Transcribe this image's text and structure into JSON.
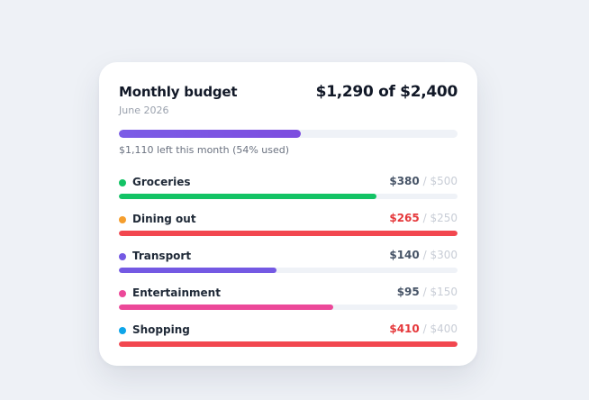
{
  "card": {
    "title": "Monthly budget",
    "period": "June 2026",
    "total": "$1,290 of $2,400",
    "progress_fraction": 0.5375,
    "progress_color": "#7c4ddf",
    "summary": "$1,110 left this month (54% used)"
  },
  "colors": {
    "spent_default": "#475467",
    "spent_over": "#e5383b"
  },
  "categories": [
    {
      "name": "Groceries",
      "spent": "$380",
      "limit": "$500",
      "fraction": 0.76,
      "color": "#13c365",
      "dot_color": "#13c365",
      "over": false
    },
    {
      "name": "Dining out",
      "spent": "$265",
      "limit": "$250",
      "fraction": 1.0,
      "color": "#f2474f",
      "dot_color": "#f59e2e",
      "over": true
    },
    {
      "name": "Transport",
      "spent": "$140",
      "limit": "$300",
      "fraction": 0.4667,
      "color": "#7459e3",
      "dot_color": "#7459e3",
      "over": false
    },
    {
      "name": "Entertainment",
      "spent": "$95",
      "limit": "$150",
      "fraction": 0.6333,
      "color": "#ec4899",
      "dot_color": "#ec4899",
      "over": false
    },
    {
      "name": "Shopping",
      "spent": "$410",
      "limit": "$400",
      "fraction": 1.0,
      "color": "#f2474f",
      "dot_color": "#0ea5e9",
      "over": true
    }
  ],
  "separator": "/"
}
